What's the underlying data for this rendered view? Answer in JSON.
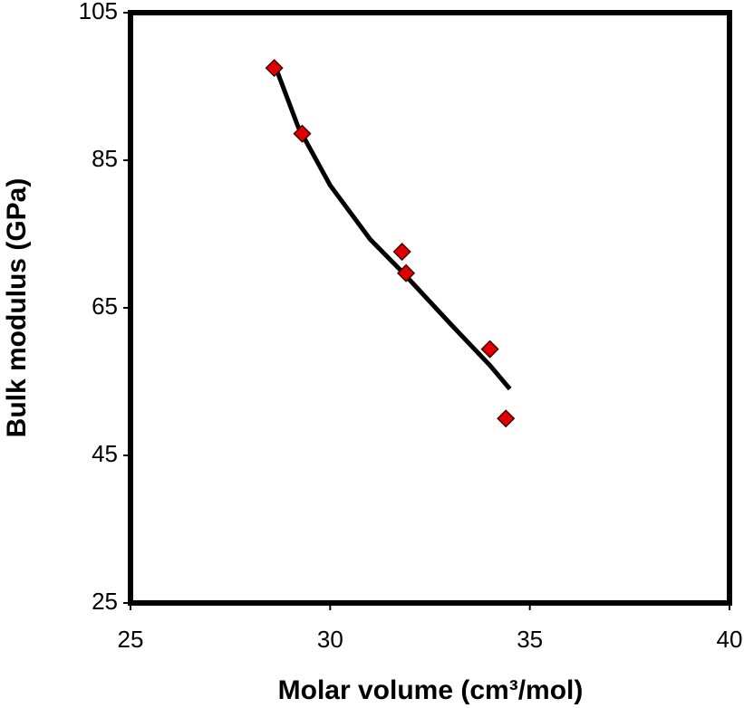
{
  "chart_data": {
    "type": "scatter",
    "x_label": "Molar volume (cm³/mol)",
    "y_label": "Bulk modulus (GPa)",
    "xlim": [
      25,
      40
    ],
    "xticks": [
      25,
      30,
      35,
      40
    ],
    "ylim": [
      25,
      105
    ],
    "yticks": [
      25,
      45,
      65,
      85,
      105
    ],
    "points": {
      "color": "#e00000",
      "x": [
        28.6,
        29.3,
        31.8,
        31.9,
        34.0,
        34.4
      ],
      "values": [
        97.5,
        88.6,
        72.6,
        69.7,
        59.4,
        50.0
      ]
    },
    "fit": {
      "color": "#000000",
      "x": [
        28.6,
        29.2,
        30,
        31,
        31.8,
        33,
        34,
        34.5
      ],
      "values": [
        98.1,
        89.5,
        81.6,
        74.3,
        69.9,
        62.9,
        57.2,
        54.0
      ]
    }
  }
}
